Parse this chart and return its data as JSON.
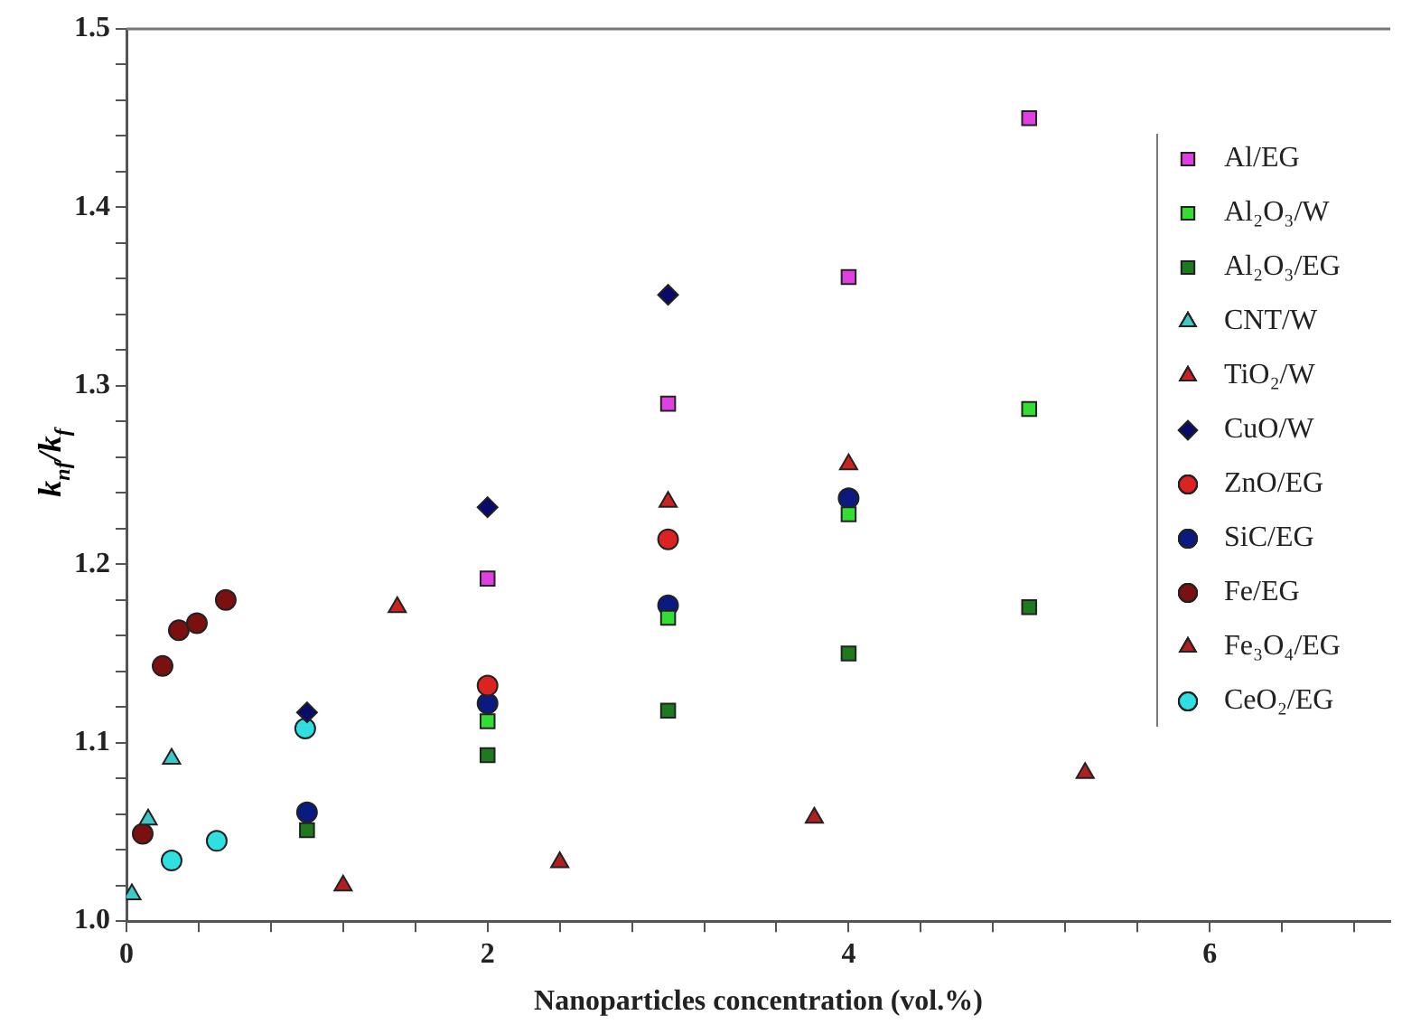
{
  "chart_data": {
    "type": "scatter",
    "xlabel": "Nanoparticles concentration (vol.%)",
    "ylabel": "k$_{nf}$/k$_{f}$",
    "xlim": [
      0,
      7
    ],
    "xticks": [
      0,
      {
        "value": 0.4,
        "label": null
      },
      {
        "value": 0.8,
        "label": null
      },
      {
        "value": 1.2,
        "label": null
      },
      {
        "value": 1.6,
        "label": null
      },
      2,
      {
        "value": 2.4,
        "label": null
      },
      {
        "value": 2.8,
        "label": null
      },
      {
        "value": 3.2,
        "label": null
      },
      {
        "value": 3.6,
        "label": null
      },
      4,
      {
        "value": 4.4,
        "label": null
      },
      {
        "value": 4.8,
        "label": null
      },
      {
        "value": 5.2,
        "label": null
      },
      {
        "value": 5.6,
        "label": null
      },
      6,
      {
        "value": 6.4,
        "label": null
      },
      {
        "value": 6.8,
        "label": null
      }
    ],
    "ylim": [
      1.0,
      1.5
    ],
    "yticks": [
      {
        "value": 1.0,
        "label": "1.0"
      },
      {
        "value": 1.02,
        "label": null
      },
      {
        "value": 1.04,
        "label": null
      },
      {
        "value": 1.06,
        "label": null
      },
      {
        "value": 1.08,
        "label": null
      },
      {
        "value": 1.1,
        "label": "1.1"
      },
      {
        "value": 1.12,
        "label": null
      },
      {
        "value": 1.14,
        "label": null
      },
      {
        "value": 1.16,
        "label": null
      },
      {
        "value": 1.18,
        "label": null
      },
      {
        "value": 1.2,
        "label": "1.2"
      },
      {
        "value": 1.22,
        "label": null
      },
      {
        "value": 1.24,
        "label": null
      },
      {
        "value": 1.26,
        "label": null
      },
      {
        "value": 1.28,
        "label": null
      },
      {
        "value": 1.3,
        "label": "1.3"
      },
      {
        "value": 1.32,
        "label": null
      },
      {
        "value": 1.34,
        "label": null
      },
      {
        "value": 1.36,
        "label": null
      },
      {
        "value": 1.38,
        "label": null
      },
      {
        "value": 1.4,
        "label": "1.4"
      },
      {
        "value": 1.42,
        "label": null
      },
      {
        "value": 1.44,
        "label": null
      },
      {
        "value": 1.46,
        "label": null
      },
      {
        "value": 1.48,
        "label": null
      },
      {
        "value": 1.5,
        "label": "1.5"
      }
    ],
    "grid": false,
    "legend": "right",
    "series": [
      {
        "name": "Al/EG",
        "color": "#e040e0",
        "marker": "square",
        "x": [
          2,
          3,
          4,
          5
        ],
        "values": [
          1.192,
          1.29,
          1.361,
          1.45
        ]
      },
      {
        "name": "Al₂O₃/W",
        "color": "#33dd33",
        "marker": "square",
        "x": [
          2,
          3,
          4,
          5
        ],
        "values": [
          1.112,
          1.17,
          1.228,
          1.287
        ]
      },
      {
        "name": "Al₂O₃/EG",
        "color": "#1e7a1e",
        "marker": "square",
        "x": [
          1,
          2,
          3,
          4,
          5
        ],
        "values": [
          1.051,
          1.093,
          1.118,
          1.15,
          1.176
        ]
      },
      {
        "name": "CNT/W",
        "color": "#40c8c8",
        "marker": "triangle",
        "x": [
          0.03,
          0.12,
          0.25
        ],
        "values": [
          1.015,
          1.057,
          1.091
        ]
      },
      {
        "name": "TiO₂/W",
        "color": "#cc2222",
        "marker": "triangle",
        "x": [
          1.5,
          3,
          4
        ],
        "values": [
          1.176,
          1.235,
          1.256
        ]
      },
      {
        "name": "CuO/W",
        "color": "#0a0a6a",
        "marker": "diamond",
        "x": [
          1,
          2,
          3
        ],
        "values": [
          1.117,
          1.232,
          1.351
        ]
      },
      {
        "name": "ZnO/EG",
        "color": "#dd2222",
        "marker": "circle",
        "x": [
          2,
          3
        ],
        "values": [
          1.132,
          1.214
        ]
      },
      {
        "name": "SiC/EG",
        "color": "#0a1a80",
        "marker": "circle",
        "x": [
          1,
          2,
          3,
          4
        ],
        "values": [
          1.061,
          1.122,
          1.177,
          1.237
        ]
      },
      {
        "name": "Fe/EG",
        "color": "#7a1010",
        "marker": "circle",
        "x": [
          0.09,
          0.2,
          0.29,
          0.39,
          0.55
        ],
        "values": [
          1.049,
          1.143,
          1.163,
          1.167,
          1.18
        ]
      },
      {
        "name": "Fe₃O₄/EG",
        "color": "#b02020",
        "marker": "triangle",
        "x": [
          1.2,
          2.4,
          3.81,
          5.31
        ],
        "values": [
          1.02,
          1.033,
          1.058,
          1.083
        ]
      },
      {
        "name": "CeO₂/EG",
        "color": "#30e0e0",
        "marker": "circle",
        "x": [
          0.25,
          0.5,
          0.99
        ],
        "values": [
          1.034,
          1.045,
          1.108
        ]
      }
    ]
  }
}
